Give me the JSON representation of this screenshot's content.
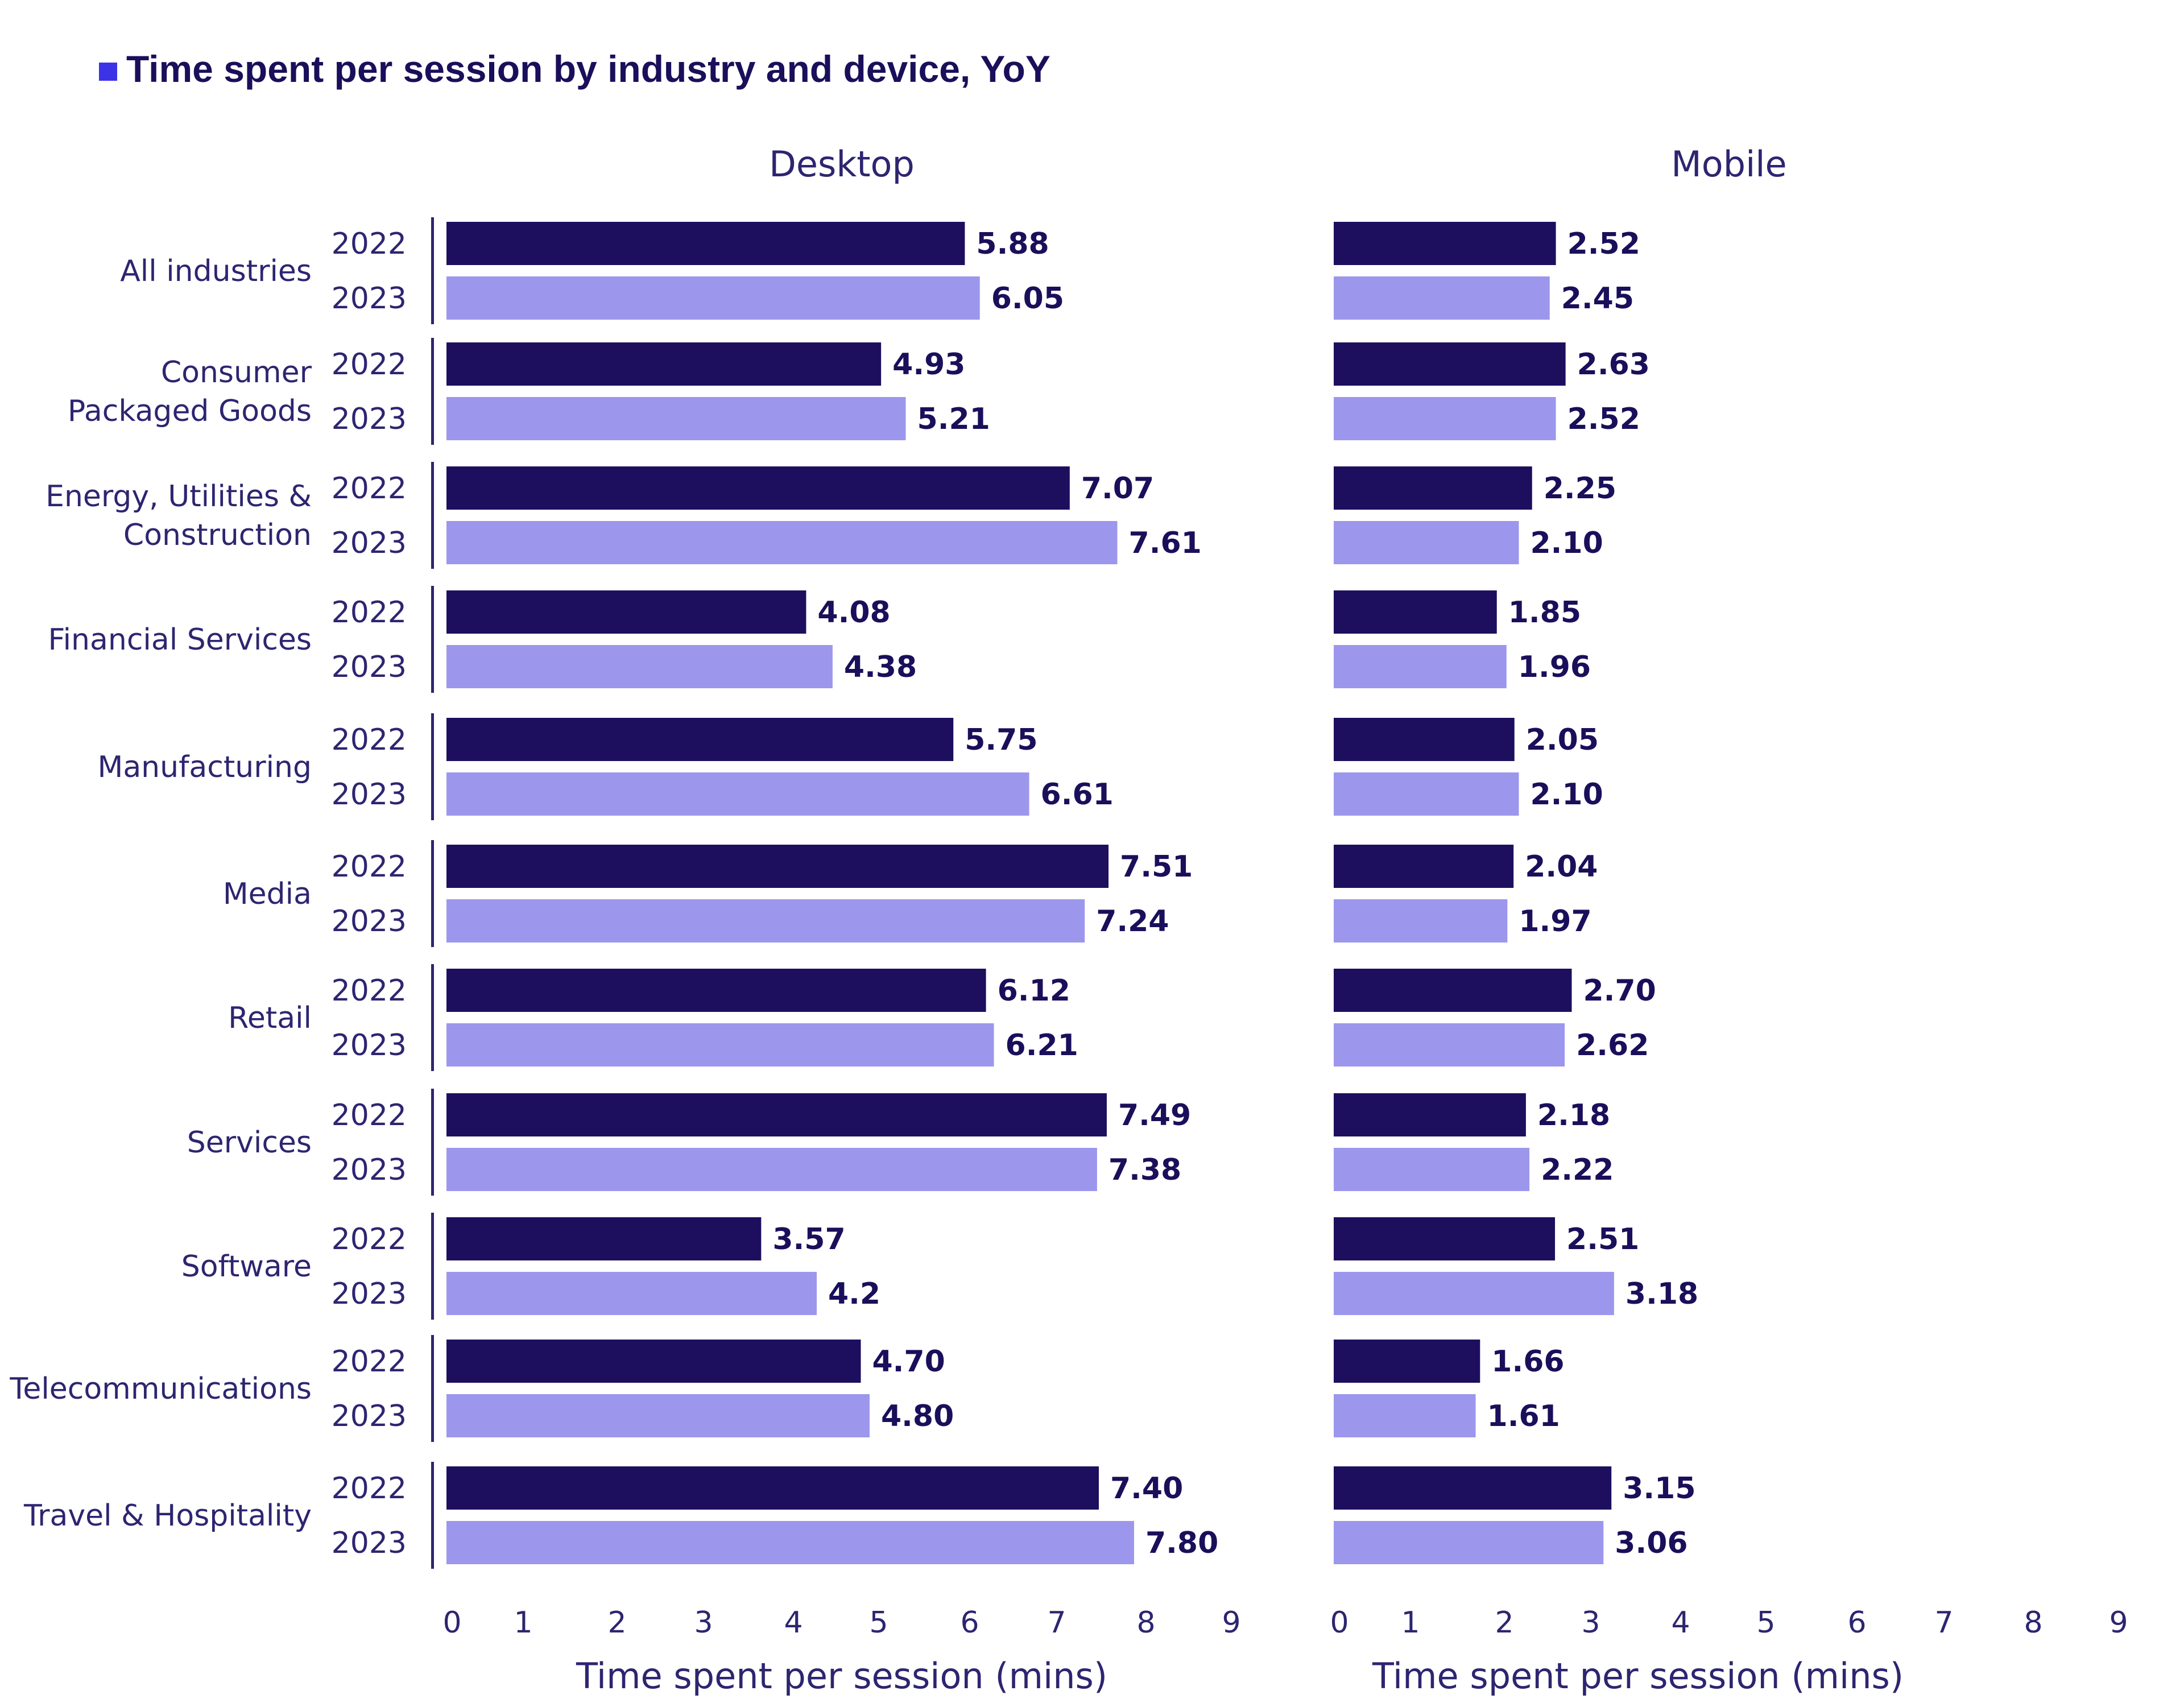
{
  "title": "Time spent per session by industry and device, YoY",
  "colors": {
    "y2022": "#1d0f5e",
    "y2023": "#9c97ec",
    "title_square": "#3d33e6",
    "axis": "#2d2570",
    "text": "#2d2570"
  },
  "years": [
    "2022",
    "2023"
  ],
  "chart_data": [
    {
      "type": "bar",
      "orientation": "horizontal",
      "title": "Desktop",
      "xlabel": "Time spent per session (mins)",
      "xlim": [
        0,
        9
      ],
      "xticks": [
        "0",
        "1",
        "2",
        "3",
        "4",
        "5",
        "6",
        "7",
        "8",
        "9"
      ],
      "categories": [
        "All industries",
        "Consumer Packaged Goods",
        "Energy, Utilities & Construction",
        "Financial Services",
        "Manufacturing",
        "Media",
        "Retail",
        "Services",
        "Software",
        "Telecommunications",
        "Travel & Hospitality"
      ],
      "category_lines": [
        [
          "All industries"
        ],
        [
          "Consumer",
          "Packaged Goods"
        ],
        [
          "Energy, Utilities &",
          "Construction"
        ],
        [
          "Financial Services"
        ],
        [
          "Manufacturing"
        ],
        [
          "Media"
        ],
        [
          "Retail"
        ],
        [
          "Services"
        ],
        [
          "Software"
        ],
        [
          "Telecommunications"
        ],
        [
          "Travel & Hospitality"
        ]
      ],
      "series": [
        {
          "name": "2022",
          "values": [
            5.88,
            4.93,
            7.07,
            4.08,
            5.75,
            7.51,
            6.12,
            7.49,
            3.57,
            4.7,
            7.4
          ],
          "labels": [
            "5.88",
            "4.93",
            "7.07",
            "4.08",
            "5.75",
            "7.51",
            "6.12",
            "7.49",
            "3.57",
            "4.70",
            "7.40"
          ]
        },
        {
          "name": "2023",
          "values": [
            6.05,
            5.21,
            7.61,
            4.38,
            6.61,
            7.24,
            6.21,
            7.38,
            4.2,
            4.8,
            7.8
          ],
          "labels": [
            "6.05",
            "5.21",
            "7.61",
            "4.38",
            "6.61",
            "7.24",
            "6.21",
            "7.38",
            "4.2",
            "4.80",
            "7.80"
          ]
        }
      ]
    },
    {
      "type": "bar",
      "orientation": "horizontal",
      "title": "Mobile",
      "xlabel": "Time spent per session (mins)",
      "xlim": [
        0,
        9
      ],
      "xticks": [
        "0",
        "1",
        "2",
        "3",
        "4",
        "5",
        "6",
        "7",
        "8",
        "9"
      ],
      "categories": [
        "All industries",
        "Consumer Packaged Goods",
        "Energy, Utilities & Construction",
        "Financial Services",
        "Manufacturing",
        "Media",
        "Retail",
        "Services",
        "Software",
        "Telecommunications",
        "Travel & Hospitality"
      ],
      "series": [
        {
          "name": "2022",
          "values": [
            2.52,
            2.63,
            2.25,
            1.85,
            2.05,
            2.04,
            2.7,
            2.18,
            2.51,
            1.66,
            3.15
          ],
          "labels": [
            "2.52",
            "2.63",
            "2.25",
            "1.85",
            "2.05",
            "2.04",
            "2.70",
            "2.18",
            "2.51",
            "1.66",
            "3.15"
          ]
        },
        {
          "name": "2023",
          "values": [
            2.45,
            2.52,
            2.1,
            1.96,
            2.1,
            1.97,
            2.62,
            2.22,
            3.18,
            1.61,
            3.06
          ],
          "labels": [
            "2.45",
            "2.52",
            "2.10",
            "1.96",
            "2.10",
            "1.97",
            "2.62",
            "2.22",
            "3.18",
            "1.61",
            "3.06"
          ]
        }
      ]
    }
  ]
}
